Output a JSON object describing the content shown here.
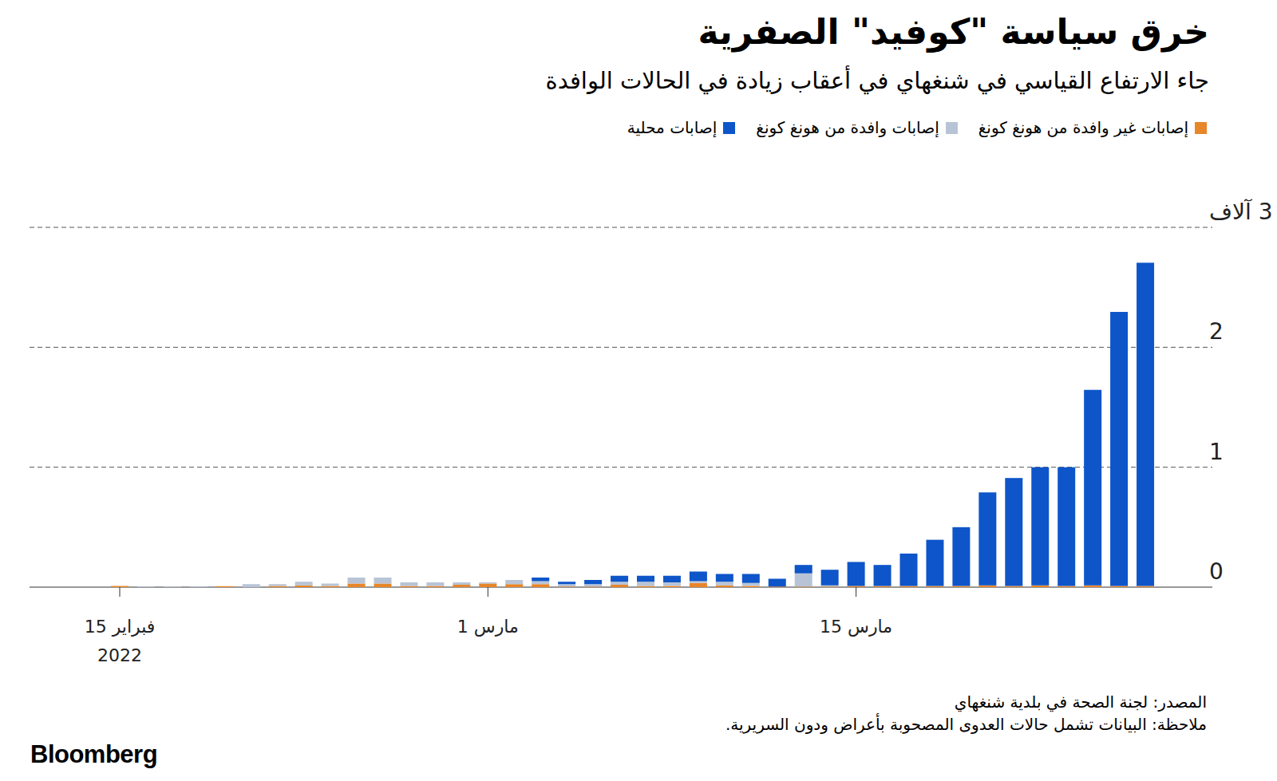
{
  "chart_data": {
    "type": "bar",
    "stacked": true,
    "grid": true,
    "title": "خرق سياسة \"كوفيد\" الصفرية",
    "subtitle": "جاء الارتفاع القياسي في شنغهاي في أعقاب زيادة في الحالات الوافدة",
    "source": "المصدر: لجنة الصحة في بلدية شنغهاي",
    "note": "ملاحظة: البيانات تشمل حالات العدوى المصحوبة بأعراض ودون السريرية.",
    "brand": "Bloomberg",
    "categories": [
      "15 فبراير\n2022",
      null,
      null,
      null,
      null,
      null,
      null,
      null,
      null,
      null,
      null,
      null,
      null,
      null,
      "1 مارس",
      null,
      null,
      null,
      null,
      null,
      null,
      null,
      null,
      null,
      null,
      null,
      null,
      null,
      "15 مارس",
      null,
      null,
      null,
      null,
      null,
      null,
      null,
      null,
      null,
      null,
      null
    ],
    "ylim": [
      0,
      3
    ],
    "yticks": [
      0,
      1,
      2,
      {
        "value": 3,
        "label": "3 آلاف"
      }
    ],
    "series": [
      {
        "name": "إصابات غير وافدة من هونغ كونغ",
        "color": "#e8862a",
        "values": [
          0.01,
          0,
          0,
          0,
          0.008,
          0,
          0.01,
          0.015,
          0.01,
          0.03,
          0.03,
          0.01,
          0.01,
          0.02,
          0.03,
          0.025,
          0.025,
          0.005,
          0.005,
          0.02,
          0.01,
          0.01,
          0.035,
          0.015,
          0.01,
          0.005,
          0.005,
          0.005,
          0.01,
          0.01,
          0.01,
          0.01,
          0.01,
          0.015,
          0.01,
          0.015,
          0.01,
          0.015,
          0.01,
          0.01
        ]
      },
      {
        "name": "إصابات وافدة من هونغ كونغ",
        "color": "#b8c4d6",
        "values": [
          0,
          0.005,
          0.005,
          0.005,
          0,
          0.025,
          0.015,
          0.03,
          0.02,
          0.05,
          0.05,
          0.03,
          0.03,
          0.02,
          0.01,
          0.035,
          0.025,
          0.02,
          0.02,
          0.025,
          0.035,
          0.03,
          0.015,
          0.03,
          0.025,
          0,
          0.11,
          0.01,
          0,
          0,
          0,
          0,
          0,
          0,
          0,
          0,
          0,
          0,
          0,
          0
        ]
      },
      {
        "name": "إصابات محلية",
        "color": "#0d55c9",
        "values": [
          0,
          0,
          0,
          0,
          0,
          0,
          0,
          0,
          0,
          0,
          0,
          0,
          0,
          0,
          0,
          0,
          0.03,
          0.02,
          0.035,
          0.05,
          0.05,
          0.055,
          0.08,
          0.065,
          0.075,
          0.065,
          0.07,
          0.13,
          0.2,
          0.175,
          0.27,
          0.385,
          0.49,
          0.775,
          0.9,
          0.985,
          0.99,
          1.63,
          2.285,
          2.695
        ]
      }
    ]
  }
}
